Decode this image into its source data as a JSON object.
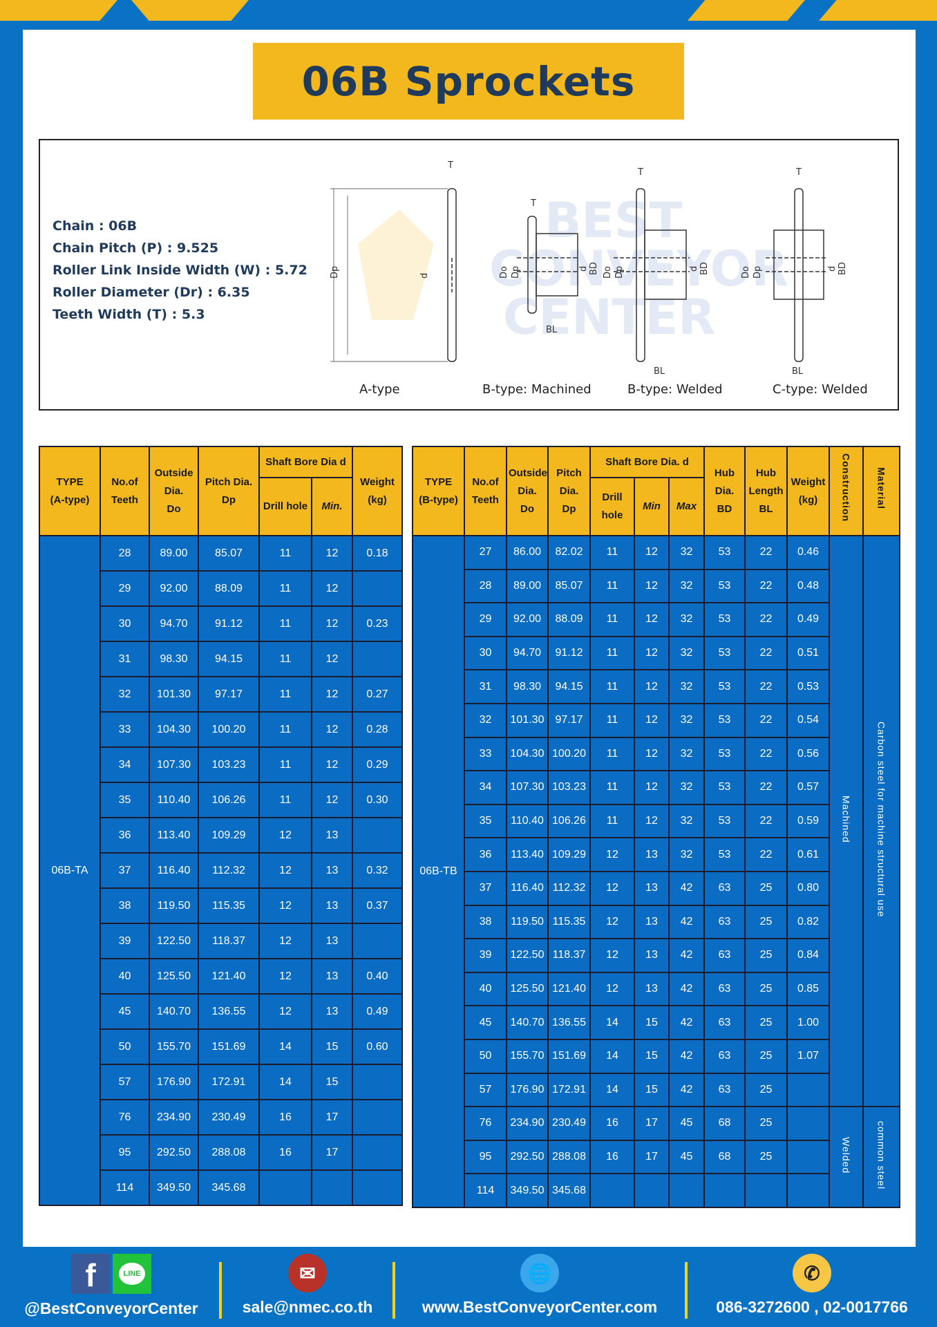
{
  "title": "06B Sprockets",
  "specs": [
    "Chain  : 06B",
    "Chain Pitch (P)  :  9.525",
    "Roller Link Inside Width (W)  :  5.72",
    "Roller Diameter (Dr)  : 6.35",
    "Teeth Width (T)  :  5.3"
  ],
  "diagram_labels": [
    "A-type",
    "B-type: Machined",
    "B-type: Welded",
    "C-type: Welded"
  ],
  "watermark": "BEST CONVEYOR CENTER",
  "table_a": {
    "headers": {
      "type": [
        "TYPE",
        "(A-type)"
      ],
      "teeth": [
        "No.of",
        "Teeth"
      ],
      "od": [
        "Outside",
        "Dia.",
        "Do"
      ],
      "pd": [
        "Pitch Dia.",
        "Dp"
      ],
      "bore": "Shaft Bore Dia d",
      "drill": "Drill hole",
      "min": "Min.",
      "weight": [
        "Weight",
        "(kg)"
      ]
    },
    "type": "06B-TA",
    "rows": [
      [
        "28",
        "89.00",
        "85.07",
        "11",
        "12",
        "0.18"
      ],
      [
        "29",
        "92.00",
        "88.09",
        "11",
        "12",
        ""
      ],
      [
        "30",
        "94.70",
        "91.12",
        "11",
        "12",
        "0.23"
      ],
      [
        "31",
        "98.30",
        "94.15",
        "11",
        "12",
        ""
      ],
      [
        "32",
        "101.30",
        "97.17",
        "11",
        "12",
        "0.27"
      ],
      [
        "33",
        "104.30",
        "100.20",
        "11",
        "12",
        "0.28"
      ],
      [
        "34",
        "107.30",
        "103.23",
        "11",
        "12",
        "0.29"
      ],
      [
        "35",
        "110.40",
        "106.26",
        "11",
        "12",
        "0.30"
      ],
      [
        "36",
        "113.40",
        "109.29",
        "12",
        "13",
        ""
      ],
      [
        "37",
        "116.40",
        "112.32",
        "12",
        "13",
        "0.32"
      ],
      [
        "38",
        "119.50",
        "115.35",
        "12",
        "13",
        "0.37"
      ],
      [
        "39",
        "122.50",
        "118.37",
        "12",
        "13",
        ""
      ],
      [
        "40",
        "125.50",
        "121.40",
        "12",
        "13",
        "0.40"
      ],
      [
        "45",
        "140.70",
        "136.55",
        "12",
        "13",
        "0.49"
      ],
      [
        "50",
        "155.70",
        "151.69",
        "14",
        "15",
        "0.60"
      ],
      [
        "57",
        "176.90",
        "172.91",
        "14",
        "15",
        ""
      ],
      [
        "76",
        "234.90",
        "230.49",
        "16",
        "17",
        ""
      ],
      [
        "95",
        "292.50",
        "288.08",
        "16",
        "17",
        ""
      ],
      [
        "114",
        "349.50",
        "345.68",
        "",
        "",
        ""
      ]
    ]
  },
  "table_b": {
    "headers": {
      "type": [
        "TYPE",
        "(B-type)"
      ],
      "teeth": [
        "No.of",
        "Teeth"
      ],
      "od": [
        "Outside",
        "Dia.",
        "Do"
      ],
      "pd": [
        "Pitch",
        "Dia.",
        "Dp"
      ],
      "bore": "Shaft Bore Dia. d",
      "drill": "Drill hole",
      "min": "Min",
      "max": "Max",
      "hubd": [
        "Hub",
        "Dia.",
        "BD"
      ],
      "hubl": [
        "Hub",
        "Length",
        "BL"
      ],
      "weight": [
        "Weight",
        "(kg)"
      ],
      "construction": "Construction",
      "material": "Material"
    },
    "type": "06B-TB",
    "construction": [
      "Machined",
      "Welded"
    ],
    "material": [
      "Carbon steel for machine structural use",
      "common steel"
    ],
    "rows": [
      [
        "27",
        "86.00",
        "82.02",
        "11",
        "12",
        "32",
        "53",
        "22",
        "0.46"
      ],
      [
        "28",
        "89.00",
        "85.07",
        "11",
        "12",
        "32",
        "53",
        "22",
        "0.48"
      ],
      [
        "29",
        "92.00",
        "88.09",
        "11",
        "12",
        "32",
        "53",
        "22",
        "0.49"
      ],
      [
        "30",
        "94.70",
        "91.12",
        "11",
        "12",
        "32",
        "53",
        "22",
        "0.51"
      ],
      [
        "31",
        "98.30",
        "94.15",
        "11",
        "12",
        "32",
        "53",
        "22",
        "0.53"
      ],
      [
        "32",
        "101.30",
        "97.17",
        "11",
        "12",
        "32",
        "53",
        "22",
        "0.54"
      ],
      [
        "33",
        "104.30",
        "100.20",
        "11",
        "12",
        "32",
        "53",
        "22",
        "0.56"
      ],
      [
        "34",
        "107.30",
        "103.23",
        "11",
        "12",
        "32",
        "53",
        "22",
        "0.57"
      ],
      [
        "35",
        "110.40",
        "106.26",
        "11",
        "12",
        "32",
        "53",
        "22",
        "0.59"
      ],
      [
        "36",
        "113.40",
        "109.29",
        "12",
        "13",
        "32",
        "53",
        "22",
        "0.61"
      ],
      [
        "37",
        "116.40",
        "112.32",
        "12",
        "13",
        "42",
        "63",
        "25",
        "0.80"
      ],
      [
        "38",
        "119.50",
        "115.35",
        "12",
        "13",
        "42",
        "63",
        "25",
        "0.82"
      ],
      [
        "39",
        "122.50",
        "118.37",
        "12",
        "13",
        "42",
        "63",
        "25",
        "0.84"
      ],
      [
        "40",
        "125.50",
        "121.40",
        "12",
        "13",
        "42",
        "63",
        "25",
        "0.85"
      ],
      [
        "45",
        "140.70",
        "136.55",
        "14",
        "15",
        "42",
        "63",
        "25",
        "1.00"
      ],
      [
        "50",
        "155.70",
        "151.69",
        "14",
        "15",
        "42",
        "63",
        "25",
        "1.07"
      ],
      [
        "57",
        "176.90",
        "172.91",
        "14",
        "15",
        "42",
        "63",
        "25",
        ""
      ],
      [
        "76",
        "234.90",
        "230.49",
        "16",
        "17",
        "45",
        "68",
        "25",
        ""
      ],
      [
        "95",
        "292.50",
        "288.08",
        "16",
        "17",
        "45",
        "68",
        "25",
        ""
      ],
      [
        "114",
        "349.50",
        "345.68",
        "",
        "",
        "",
        "",
        "",
        ""
      ]
    ]
  },
  "footer": {
    "social": "@BestConveyorCenter",
    "email": "sale@nmec.co.th",
    "website": "www.BestConveyorCenter.com",
    "phone": "086-3272600 , 02-0017766",
    "line_badge": "LINE"
  }
}
